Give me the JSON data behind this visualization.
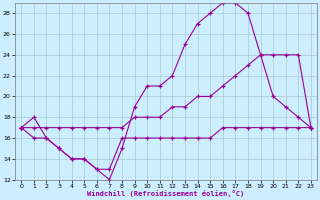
{
  "bg_color": "#cceeff",
  "grid_color": "#aacccc",
  "line_color": "#990099",
  "marker": "+",
  "xlabel": "Windchill (Refroidissement éolien,°C)",
  "xlim": [
    -0.5,
    23.5
  ],
  "ylim": [
    12,
    29
  ],
  "yticks": [
    12,
    14,
    16,
    18,
    20,
    22,
    24,
    26,
    28
  ],
  "xticks": [
    0,
    1,
    2,
    3,
    4,
    5,
    6,
    7,
    8,
    9,
    10,
    11,
    12,
    13,
    14,
    15,
    16,
    17,
    18,
    19,
    20,
    21,
    22,
    23
  ],
  "series": [
    {
      "x": [
        0,
        1,
        2,
        3,
        4,
        5,
        6,
        7,
        8,
        9,
        10,
        11,
        12,
        13,
        14,
        15,
        16,
        17,
        18,
        19,
        20,
        21,
        22,
        23
      ],
      "y": [
        17,
        18,
        16,
        15,
        14,
        14,
        13,
        12,
        15,
        19,
        21,
        21,
        22,
        25,
        27,
        28,
        29,
        29,
        28,
        24,
        20,
        19,
        18,
        17
      ]
    },
    {
      "x": [
        0,
        1,
        2,
        3,
        4,
        5,
        6,
        7,
        8,
        9,
        10,
        11,
        12,
        13,
        14,
        15,
        16,
        17,
        18,
        19,
        20,
        21,
        22,
        23
      ],
      "y": [
        17,
        17,
        17,
        17,
        17,
        17,
        17,
        17,
        17,
        18,
        18,
        18,
        19,
        19,
        20,
        20,
        21,
        22,
        23,
        24,
        24,
        24,
        24,
        17
      ]
    },
    {
      "x": [
        0,
        1,
        2,
        3,
        4,
        5,
        6,
        7,
        8,
        9,
        10,
        11,
        12,
        13,
        14,
        15,
        16,
        17,
        18,
        19,
        20,
        21,
        22,
        23
      ],
      "y": [
        17,
        16,
        16,
        15,
        14,
        14,
        13,
        13,
        16,
        16,
        16,
        16,
        16,
        16,
        16,
        16,
        17,
        17,
        17,
        17,
        17,
        17,
        17,
        17
      ]
    }
  ]
}
